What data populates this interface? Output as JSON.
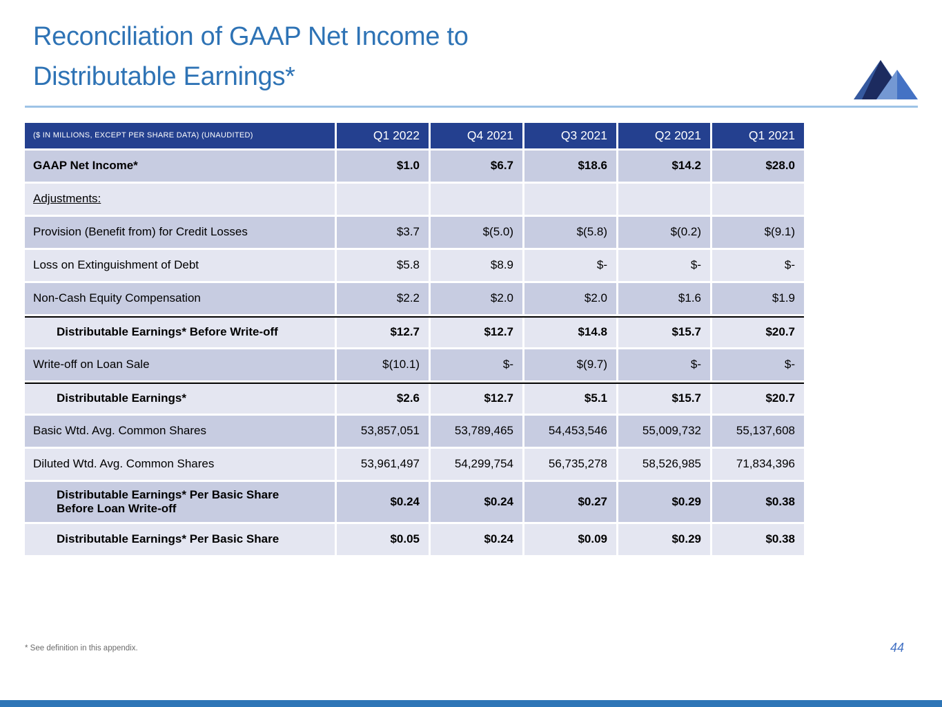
{
  "slide": {
    "title_line1": "Reconciliation of GAAP Net Income to",
    "title_line2": "Distributable Earnings*",
    "footnote": "* See definition in this appendix.",
    "page_number": "44"
  },
  "colors": {
    "title_blue": "#2E73B5",
    "rule_light_blue": "#9DC3E6",
    "header_navy": "#24408F",
    "row_shade_dark": "#C7CCE1",
    "row_shade_light": "#E4E6F1",
    "separator_black": "#000000",
    "footnote_gray": "#6B6B6B",
    "page_number_blue": "#4472C4",
    "bottom_bar_blue": "#2E75B6",
    "logo_dark_navy": "#1C2B5F",
    "logo_medium_blue": "#35599F",
    "logo_blue": "#4472C4",
    "logo_light_blue": "#7C9FD6"
  },
  "icons": {
    "logo": "mountain-logo-icon"
  },
  "table": {
    "unit_label": "($ IN MILLIONS, EXCEPT PER SHARE DATA) (UNAUDITED)",
    "columns": [
      "Q1 2022",
      "Q4 2021",
      "Q3 2021",
      "Q2 2021",
      "Q1 2021"
    ],
    "rows": [
      {
        "label": "GAAP Net Income*",
        "values": [
          "$1.0",
          "$6.7",
          "$18.6",
          "$14.2",
          "$28.0"
        ],
        "bold": true,
        "indent": false,
        "underline": false,
        "shade": "dark",
        "separator_above": false,
        "tall": false
      },
      {
        "label": "Adjustments:",
        "values": [
          "",
          "",
          "",
          "",
          ""
        ],
        "bold": false,
        "indent": false,
        "underline": true,
        "shade": "light",
        "separator_above": false,
        "tall": false
      },
      {
        "label": "Provision (Benefit from) for Credit Losses",
        "values": [
          "$3.7",
          "$(5.0)",
          "$(5.8)",
          "$(0.2)",
          "$(9.1)"
        ],
        "bold": false,
        "indent": false,
        "underline": false,
        "shade": "dark",
        "separator_above": false,
        "tall": false
      },
      {
        "label": "Loss on Extinguishment of Debt",
        "values": [
          "$5.8",
          "$8.9",
          "$-",
          "$-",
          "$-"
        ],
        "bold": false,
        "indent": false,
        "underline": false,
        "shade": "light",
        "separator_above": false,
        "tall": false
      },
      {
        "label": "Non-Cash Equity Compensation",
        "values": [
          "$2.2",
          "$2.0",
          "$2.0",
          "$1.6",
          "$1.9"
        ],
        "bold": false,
        "indent": false,
        "underline": false,
        "shade": "dark",
        "separator_above": false,
        "tall": false
      },
      {
        "label": "Distributable Earnings* Before Write-off",
        "values": [
          "$12.7",
          "$12.7",
          "$14.8",
          "$15.7",
          "$20.7"
        ],
        "bold": true,
        "indent": true,
        "underline": false,
        "shade": "light",
        "separator_above": true,
        "tall": false
      },
      {
        "label": "Write-off on Loan Sale",
        "values": [
          "$(10.1)",
          "$-",
          "$(9.7)",
          "$-",
          "$-"
        ],
        "bold": false,
        "indent": false,
        "underline": false,
        "shade": "dark",
        "separator_above": false,
        "tall": false
      },
      {
        "label": "Distributable Earnings*",
        "values": [
          "$2.6",
          "$12.7",
          "$5.1",
          "$15.7",
          "$20.7"
        ],
        "bold": true,
        "indent": true,
        "underline": false,
        "shade": "light",
        "separator_above": true,
        "tall": false
      },
      {
        "label": "Basic Wtd. Avg. Common Shares",
        "values": [
          "53,857,051",
          "53,789,465",
          "54,453,546",
          "55,009,732",
          "55,137,608"
        ],
        "bold": false,
        "indent": false,
        "underline": false,
        "shade": "dark",
        "separator_above": false,
        "tall": false
      },
      {
        "label": "Diluted Wtd. Avg. Common Shares",
        "values": [
          "53,961,497",
          "54,299,754",
          "56,735,278",
          "58,526,985",
          "71,834,396"
        ],
        "bold": false,
        "indent": false,
        "underline": false,
        "shade": "light",
        "separator_above": false,
        "tall": false
      },
      {
        "label": "Distributable Earnings* Per Basic Share Before Loan Write-off",
        "values": [
          "$0.24",
          "$0.24",
          "$0.27",
          "$0.29",
          "$0.38"
        ],
        "bold": true,
        "indent": true,
        "underline": false,
        "shade": "dark",
        "separator_above": false,
        "tall": true
      },
      {
        "label": "Distributable Earnings* Per Basic Share",
        "values": [
          "$0.05",
          "$0.24",
          "$0.09",
          "$0.29",
          "$0.38"
        ],
        "bold": true,
        "indent": true,
        "underline": false,
        "shade": "light",
        "separator_above": false,
        "tall": false
      }
    ]
  }
}
